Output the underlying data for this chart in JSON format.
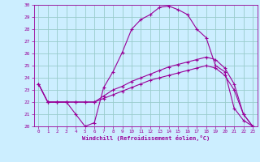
{
  "xlabel": "Windchill (Refroidissement éolien,°C)",
  "bg_color": "#cceeff",
  "grid_color": "#99cccc",
  "line_color": "#990099",
  "xlim": [
    -0.5,
    23.5
  ],
  "ylim": [
    20,
    30
  ],
  "xticks": [
    0,
    1,
    2,
    3,
    4,
    5,
    6,
    7,
    8,
    9,
    10,
    11,
    12,
    13,
    14,
    15,
    16,
    17,
    18,
    19,
    20,
    21,
    22,
    23
  ],
  "yticks": [
    20,
    21,
    22,
    23,
    24,
    25,
    26,
    27,
    28,
    29,
    30
  ],
  "line1_x": [
    0,
    1,
    2,
    3,
    4,
    5,
    6,
    7,
    8,
    9,
    10,
    11,
    12,
    13,
    14,
    15,
    16,
    17,
    18,
    19,
    20,
    21,
    22,
    23
  ],
  "line1_y": [
    23.5,
    22.0,
    22.0,
    22.0,
    21.0,
    20.0,
    20.3,
    23.2,
    24.5,
    26.1,
    28.0,
    28.8,
    29.2,
    29.8,
    29.9,
    29.6,
    29.2,
    28.0,
    27.3,
    25.0,
    24.5,
    21.5,
    20.5,
    20.0
  ],
  "line2_x": [
    0,
    1,
    2,
    3,
    4,
    5,
    6,
    7,
    8,
    9,
    10,
    11,
    12,
    13,
    14,
    15,
    16,
    17,
    18,
    19,
    20,
    21,
    22,
    23
  ],
  "line2_y": [
    23.5,
    22.0,
    22.0,
    22.0,
    22.0,
    22.0,
    22.0,
    22.5,
    23.0,
    23.3,
    23.7,
    24.0,
    24.3,
    24.6,
    24.9,
    25.1,
    25.3,
    25.5,
    25.7,
    25.5,
    24.8,
    23.5,
    21.0,
    20.0
  ],
  "line3_x": [
    0,
    1,
    2,
    3,
    4,
    5,
    6,
    7,
    8,
    9,
    10,
    11,
    12,
    13,
    14,
    15,
    16,
    17,
    18,
    19,
    20,
    21,
    22,
    23
  ],
  "line3_y": [
    23.5,
    22.0,
    22.0,
    22.0,
    22.0,
    22.0,
    22.0,
    22.3,
    22.6,
    22.9,
    23.2,
    23.5,
    23.8,
    24.0,
    24.2,
    24.4,
    24.6,
    24.8,
    25.0,
    24.8,
    24.2,
    23.0,
    21.0,
    20.0
  ]
}
